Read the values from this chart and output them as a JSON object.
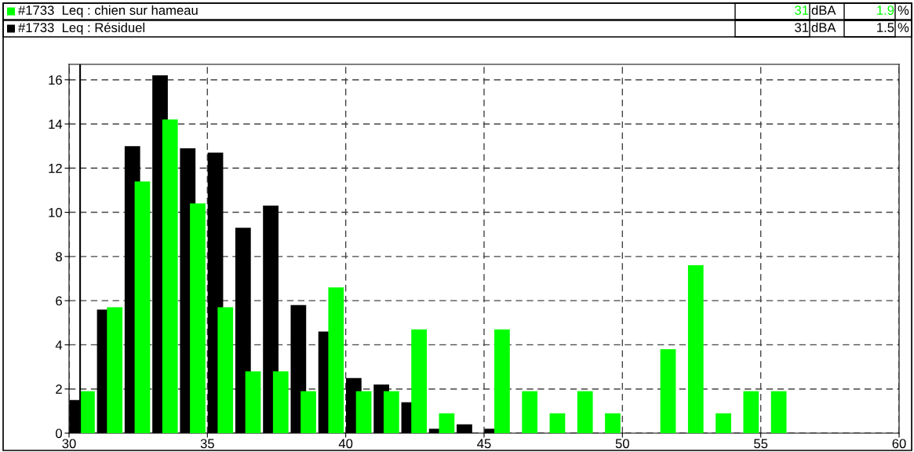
{
  "chart_data": {
    "type": "histogram",
    "bins": [
      30,
      31,
      32,
      33,
      34,
      35,
      36,
      37,
      38,
      39,
      40,
      41,
      42,
      43,
      44,
      45,
      46,
      47,
      48,
      49,
      50,
      51,
      52,
      53,
      54,
      55,
      56
    ],
    "series": [
      {
        "name": "#1733  Leq : chien sur hameau",
        "color": "#00ff00",
        "values": [
          1.9,
          5.7,
          11.4,
          14.2,
          10.4,
          5.7,
          2.8,
          2.8,
          1.9,
          6.6,
          1.9,
          1.9,
          4.7,
          0.9,
          0,
          4.7,
          1.9,
          0.9,
          1.9,
          0.9,
          0,
          3.8,
          7.6,
          0.9,
          1.9,
          1.9
        ]
      },
      {
        "name": "#1733  Leq : Résiduel",
        "color": "#000000",
        "values": [
          1.5,
          5.6,
          13.0,
          16.2,
          12.9,
          12.7,
          9.3,
          10.3,
          5.8,
          4.6,
          2.5,
          2.2,
          1.4,
          0.2,
          0.4,
          0.2,
          0,
          0,
          0,
          0,
          0,
          0,
          0,
          0,
          0,
          0
        ]
      }
    ],
    "annotations": [
      "31",
      "dBA",
      "1.9",
      "%",
      "31",
      "dBA",
      "1.5",
      "%"
    ],
    "xlim": [
      30,
      60
    ],
    "xticks": [
      30,
      35,
      40,
      45,
      50,
      55,
      60
    ],
    "ylim": [
      0,
      16.7
    ],
    "yticks": [
      0,
      2,
      4,
      6,
      8,
      10,
      12,
      14,
      16
    ],
    "ref_lines": [
      {
        "axis": "x",
        "value": 30.4,
        "color": "#000000",
        "line_style": "solid"
      }
    ],
    "grid": true,
    "legend": "top"
  }
}
